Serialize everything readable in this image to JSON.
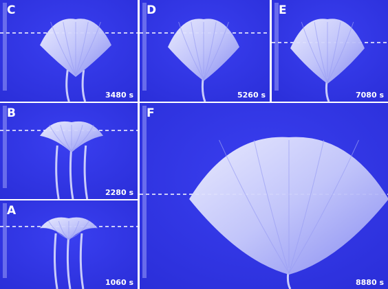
{
  "panels": [
    {
      "label": "C",
      "time": "3480 s"
    },
    {
      "label": "D",
      "time": "5260 s"
    },
    {
      "label": "E",
      "time": "7080 s"
    },
    {
      "label": "B",
      "time": "2280 s"
    },
    {
      "label": "A",
      "time": "1060 s"
    },
    {
      "label": "F",
      "time": "8880 s"
    }
  ]
}
